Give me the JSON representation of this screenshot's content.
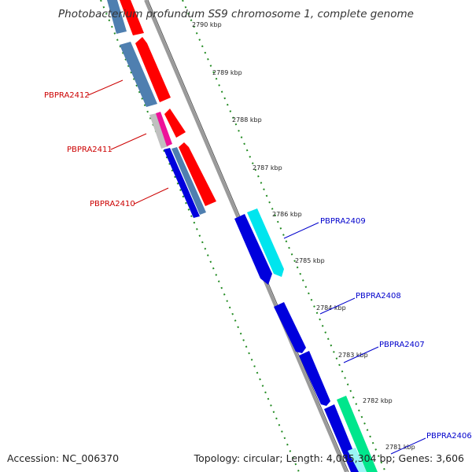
{
  "title": "Photobacterium profundum SS9 chromosome 1, complete genome",
  "footer": {
    "accession": "Accession: NC_006370",
    "topology": "Topology: circular; Length: 4,085,304 bp; Genes: 3,606"
  },
  "ticks": [
    {
      "label": "2790 kbp"
    },
    {
      "label": "2789 kbp"
    },
    {
      "label": "2788 kbp"
    },
    {
      "label": "2787 kbp"
    },
    {
      "label": "2786 kbp"
    },
    {
      "label": "2785 kbp"
    },
    {
      "label": "2784 kbp"
    },
    {
      "label": "2783 kbp"
    },
    {
      "label": "2782 kbp"
    },
    {
      "label": "2781 kbp"
    }
  ],
  "gene_labels": [
    {
      "label": "PBPRA2412",
      "color": "#cc0000"
    },
    {
      "label": "PBPRA2411",
      "color": "#cc0000"
    },
    {
      "label": "PBPRA2410",
      "color": "#cc0000"
    },
    {
      "label": "PBPRA2409",
      "color": "#0000cc"
    },
    {
      "label": "PBPRA2408",
      "color": "#0000cc"
    },
    {
      "label": "PBPRA2407",
      "color": "#0000cc"
    },
    {
      "label": "PBPRA2406",
      "color": "#0000cc"
    }
  ],
  "colors": {
    "forward_cds": "#ff0000",
    "reverse_cds": "#0000dd",
    "steel_blue": "#4f7fb0",
    "cyan": "#00e5ee",
    "sea_green": "#00e68c",
    "magenta": "#ee1199",
    "gray": "#c0c0c0",
    "backbone": "#8a8a8a",
    "tick": "#228b22"
  }
}
